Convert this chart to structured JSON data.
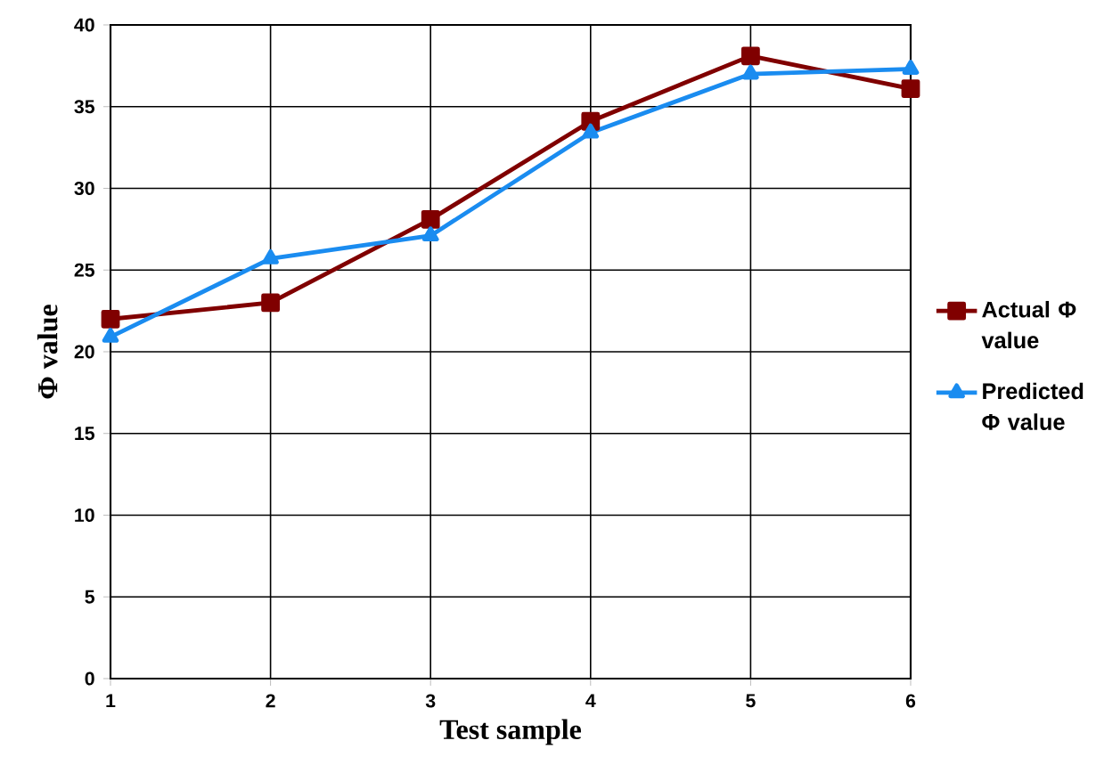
{
  "chart_data": {
    "type": "line",
    "xlabel": "Test sample",
    "ylabel": "Φ value",
    "x": [
      1,
      2,
      3,
      4,
      5,
      6
    ],
    "series": [
      {
        "name": "Actual Φ value",
        "color": "#800000",
        "marker": "square",
        "values": [
          22.0,
          23.0,
          28.1,
          34.1,
          38.1,
          36.1
        ]
      },
      {
        "name": "Predicted Φ value",
        "color": "#1a8cf0",
        "marker": "triangle",
        "values": [
          20.9,
          25.7,
          27.1,
          33.4,
          37.0,
          37.3
        ]
      }
    ],
    "xlim": [
      1,
      6
    ],
    "xticks": [
      1,
      2,
      3,
      4,
      5,
      6
    ],
    "ylim": [
      0,
      40
    ],
    "yticks": [
      0,
      5,
      10,
      15,
      20,
      25,
      30,
      35,
      40
    ],
    "grid": true,
    "legend": "right",
    "line_style": "solid"
  }
}
